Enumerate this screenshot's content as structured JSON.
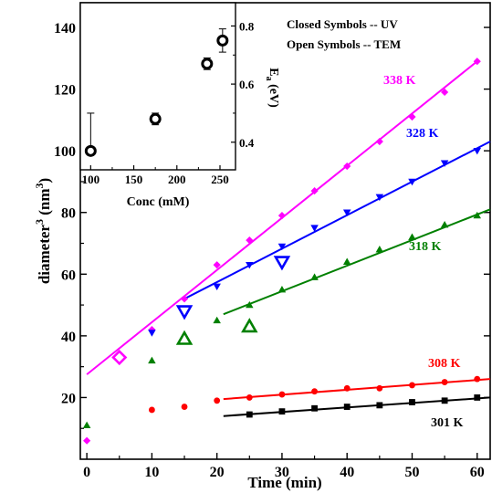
{
  "chart_data": [
    {
      "type": "scatter",
      "xlabel": "Time (min)",
      "ylabel_main": "diameter",
      "ylabel_sup": "3",
      "ylabel_unit_open": " (nm",
      "ylabel_unit_sup": "3",
      "ylabel_unit_close": ")",
      "xlim": [
        -1,
        62
      ],
      "ylim": [
        0,
        148
      ],
      "x_ticks": [
        "0",
        "10",
        "20",
        "30",
        "40",
        "50",
        "60"
      ],
      "y_ticks": [
        "20",
        "40",
        "60",
        "80",
        "100",
        "120",
        "140"
      ],
      "annotations": [
        "Closed Symbols -- UV",
        "Open Symbols -- TEM"
      ],
      "series": [
        {
          "name": "338 K",
          "color": "#ff00ff",
          "marker": "diamond",
          "uv": {
            "x": [
              0,
              10,
              15,
              20,
              25,
              30,
              35,
              40,
              45,
              50,
              55,
              60
            ],
            "y": [
              6,
              42,
              52,
              63,
              71,
              79,
              87,
              95,
              103,
              111,
              119,
              129
            ]
          },
          "tem": {
            "x": [
              5
            ],
            "y": [
              33
            ]
          },
          "fit": {
            "x": [
              0,
              60
            ],
            "y": [
              27.5,
              129
            ]
          }
        },
        {
          "name": "328 K",
          "color": "#0000ff",
          "marker": "triangle-down",
          "uv": {
            "x": [
              10,
              20,
              25,
              30,
              35,
              40,
              45,
              50,
              55,
              60
            ],
            "y": [
              41,
              56,
              63,
              69,
              75,
              80,
              85,
              90,
              96,
              100
            ]
          },
          "tem": {
            "x": [
              15,
              30
            ],
            "y": [
              48,
              64
            ]
          },
          "fit": {
            "x": [
              15,
              62
            ],
            "y": [
              52,
              103
            ]
          }
        },
        {
          "name": "318 K",
          "color": "#008000",
          "marker": "triangle-up",
          "uv": {
            "x": [
              0,
              10,
              20,
              25,
              30,
              35,
              40,
              45,
              50,
              55,
              60
            ],
            "y": [
              11,
              32,
              45,
              50,
              55,
              59,
              64,
              68,
              72,
              76,
              79
            ]
          },
          "tem": {
            "x": [
              15,
              25
            ],
            "y": [
              39,
              43
            ]
          },
          "fit": {
            "x": [
              21,
              62
            ],
            "y": [
              47,
              81
            ]
          }
        },
        {
          "name": "308 K",
          "color": "#ff0000",
          "marker": "circle",
          "uv": {
            "x": [
              10,
              15,
              20,
              25,
              30,
              35,
              40,
              45,
              50,
              55,
              60
            ],
            "y": [
              16,
              17,
              19,
              20,
              21,
              22,
              23,
              23,
              24,
              25,
              26
            ]
          },
          "fit": {
            "x": [
              21,
              62
            ],
            "y": [
              19.5,
              26
            ]
          }
        },
        {
          "name": "301 K",
          "color": "#000000",
          "marker": "square",
          "uv": {
            "x": [
              25,
              30,
              35,
              40,
              45,
              50,
              55,
              60
            ],
            "y": [
              14.5,
              15.5,
              16.5,
              17,
              17.5,
              18.5,
              19,
              20
            ]
          },
          "fit": {
            "x": [
              21,
              62
            ],
            "y": [
              14,
              20
            ]
          }
        }
      ]
    },
    {
      "type": "scatter",
      "xlabel": "Conc (mM)",
      "ylabel_main": "E",
      "ylabel_sub": "a",
      "ylabel_unit": " (eV)",
      "xlim": [
        88,
        268
      ],
      "ylim": [
        0.305,
        0.88
      ],
      "x_ticks": [
        "100",
        "150",
        "200",
        "250"
      ],
      "y_ticks": [
        "0.4",
        "0.6",
        "0.8"
      ],
      "points": {
        "x": [
          100,
          175,
          235,
          253
        ],
        "y": [
          0.37,
          0.48,
          0.67,
          0.75
        ]
      },
      "err_upper": [
        0.13,
        0.02,
        0.02,
        0.04
      ],
      "err_lower": [
        0,
        0.02,
        0.02,
        0.04
      ]
    }
  ]
}
